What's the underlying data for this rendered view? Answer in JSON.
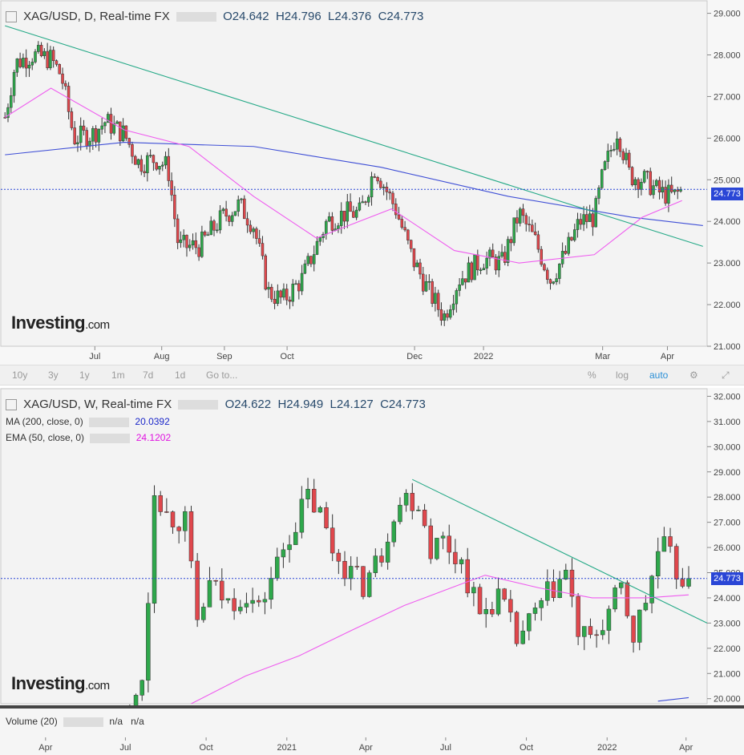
{
  "top_chart": {
    "symbol": "XAG/USD, D, Real-time FX",
    "open": "O24.642",
    "high": "H24.796",
    "low": "L24.376",
    "close": "C24.773",
    "last_price": "24.773",
    "logo": "Investing",
    "logo_suffix": ".com"
  },
  "toolbar": {
    "ranges": [
      "10y",
      "3y",
      "1y",
      "1m",
      "7d",
      "1d",
      "Go to..."
    ],
    "right": [
      "%",
      "log",
      "auto"
    ]
  },
  "bottom_chart": {
    "symbol": "XAG/USD, W, Real-time FX",
    "open": "O24.622",
    "high": "H24.949",
    "low": "L24.127",
    "close": "C24.773",
    "ma_label": "MA (200, close, 0)",
    "ma_value": "20.0392",
    "ema_label": "EMA (50, close, 0)",
    "ema_value": "24.1202",
    "last_price": "24.773",
    "logo": "Investing",
    "logo_suffix": ".com",
    "volume_label": "Volume (20)",
    "volume_values": [
      "n/a",
      "n/a"
    ]
  },
  "colors": {
    "up": "#2ea84b",
    "down": "#e0474c",
    "ma": "#3f4fd6",
    "ema": "#ef5cef",
    "trend": "#25a987",
    "price_line": "#2a46d6"
  },
  "chart_data": [
    {
      "type": "candlestick",
      "title": "XAG/USD, D, Real-time FX",
      "ylim": [
        21,
        29.3
      ],
      "y_ticks": [
        "21.000",
        "22.000",
        "23.000",
        "24.000",
        "25.000",
        "26.000",
        "27.000",
        "28.000",
        "29.000"
      ],
      "x_ticks": [
        "Jul",
        "Aug",
        "Sep",
        "Oct",
        "Dec",
        "2022",
        "Mar",
        "Apr"
      ],
      "close_path": [
        [
          "2021-05-19",
          26.5
        ],
        [
          "2021-05-24",
          27.8
        ],
        [
          "2021-06-01",
          28.0
        ],
        [
          "2021-06-10",
          27.9
        ],
        [
          "2021-06-15",
          27.5
        ],
        [
          "2021-06-21",
          26.0
        ],
        [
          "2021-06-30",
          26.1
        ],
        [
          "2021-07-06",
          26.4
        ],
        [
          "2021-07-15",
          26.1
        ],
        [
          "2021-07-22",
          25.4
        ],
        [
          "2021-07-30",
          25.5
        ],
        [
          "2021-08-05",
          25.3
        ],
        [
          "2021-08-10",
          23.4
        ],
        [
          "2021-08-20",
          23.4
        ],
        [
          "2021-08-31",
          24.1
        ],
        [
          "2021-09-08",
          24.4
        ],
        [
          "2021-09-15",
          23.9
        ],
        [
          "2021-09-22",
          22.3
        ],
        [
          "2021-09-29",
          22.1
        ],
        [
          "2021-10-08",
          22.6
        ],
        [
          "2021-10-20",
          24.0
        ],
        [
          "2021-10-29",
          24.2
        ],
        [
          "2021-11-05",
          24.2
        ],
        [
          "2021-11-12",
          25.3
        ],
        [
          "2021-11-22",
          24.3
        ],
        [
          "2021-11-30",
          23.1
        ],
        [
          "2021-12-08",
          22.3
        ],
        [
          "2021-12-15",
          21.7
        ],
        [
          "2021-12-22",
          22.6
        ],
        [
          "2022-01-03",
          23.1
        ],
        [
          "2022-01-12",
          23.0
        ],
        [
          "2022-01-20",
          24.2
        ],
        [
          "2022-01-28",
          23.5
        ],
        [
          "2022-02-04",
          22.6
        ],
        [
          "2022-02-11",
          23.2
        ],
        [
          "2022-02-18",
          24.0
        ],
        [
          "2022-02-25",
          24.1
        ],
        [
          "2022-03-01",
          25.1
        ],
        [
          "2022-03-08",
          26.2
        ],
        [
          "2022-03-14",
          25.1
        ],
        [
          "2022-03-21",
          25.0
        ],
        [
          "2022-03-28",
          24.7
        ],
        [
          "2022-04-04",
          24.6
        ],
        [
          "2022-04-08",
          24.77
        ]
      ],
      "trendline": [
        [
          "2021-05-19",
          28.7
        ],
        [
          "2022-04-18",
          23.4
        ]
      ],
      "ma_200_path": [
        [
          "2021-05-19",
          25.6
        ],
        [
          "2021-07-15",
          25.9
        ],
        [
          "2021-09-15",
          25.8
        ],
        [
          "2021-11-15",
          25.3
        ],
        [
          "2022-01-15",
          24.6
        ],
        [
          "2022-03-15",
          24.1
        ],
        [
          "2022-04-18",
          23.9
        ]
      ],
      "ema_50_path": [
        [
          "2021-05-19",
          26.5
        ],
        [
          "2021-06-10",
          27.2
        ],
        [
          "2021-07-15",
          26.2
        ],
        [
          "2021-08-15",
          25.8
        ],
        [
          "2021-09-15",
          24.6
        ],
        [
          "2021-10-15",
          23.6
        ],
        [
          "2021-11-20",
          24.3
        ],
        [
          "2021-12-20",
          23.3
        ],
        [
          "2022-01-20",
          23.0
        ],
        [
          "2022-02-25",
          23.2
        ],
        [
          "2022-03-20",
          24.1
        ],
        [
          "2022-04-08",
          24.5
        ]
      ]
    },
    {
      "type": "candlestick",
      "title": "XAG/USD, W, Real-time FX",
      "ylim": [
        19.8,
        32.3
      ],
      "y_ticks": [
        "20.000",
        "21.000",
        "22.000",
        "23.000",
        "24.000",
        "25.000",
        "26.000",
        "27.000",
        "28.000",
        "29.000",
        "30.000",
        "31.000",
        "32.000"
      ],
      "x_ticks": [
        "Apr",
        "Jul",
        "Oct",
        "2021",
        "Apr",
        "Jul",
        "Oct",
        "2022",
        "Apr"
      ],
      "close_path": [
        [
          "2020-07-06",
          19.2
        ],
        [
          "2020-07-20",
          21.0
        ],
        [
          "2020-07-27",
          24.0
        ],
        [
          "2020-08-03",
          28.5
        ],
        [
          "2020-08-17",
          27.3
        ],
        [
          "2020-09-07",
          27.0
        ],
        [
          "2020-09-21",
          23.0
        ],
        [
          "2020-10-05",
          24.5
        ],
        [
          "2020-10-26",
          23.8
        ],
        [
          "2020-11-16",
          24.2
        ],
        [
          "2020-11-30",
          23.5
        ],
        [
          "2020-12-14",
          24.8
        ],
        [
          "2021-01-04",
          26.5
        ],
        [
          "2021-01-25",
          28.0
        ],
        [
          "2021-02-08",
          27.3
        ],
        [
          "2021-02-22",
          25.9
        ],
        [
          "2021-03-15",
          25.0
        ],
        [
          "2021-03-29",
          24.5
        ],
        [
          "2021-04-19",
          25.8
        ],
        [
          "2021-05-03",
          27.5
        ],
        [
          "2021-05-17",
          28.0
        ],
        [
          "2021-06-01",
          27.8
        ],
        [
          "2021-06-14",
          26.0
        ],
        [
          "2021-06-28",
          26.3
        ],
        [
          "2021-07-19",
          25.4
        ],
        [
          "2021-08-09",
          23.3
        ],
        [
          "2021-08-30",
          24.1
        ],
        [
          "2021-09-20",
          22.3
        ],
        [
          "2021-10-11",
          23.3
        ],
        [
          "2021-10-25",
          24.1
        ],
        [
          "2021-11-15",
          25.0
        ],
        [
          "2021-11-29",
          22.6
        ],
        [
          "2021-12-13",
          22.2
        ],
        [
          "2021-12-27",
          23.0
        ],
        [
          "2022-01-17",
          24.3
        ],
        [
          "2022-01-31",
          22.5
        ],
        [
          "2022-02-14",
          23.9
        ],
        [
          "2022-02-28",
          25.8
        ],
        [
          "2022-03-07",
          26.0
        ],
        [
          "2022-03-21",
          25.0
        ],
        [
          "2022-04-04",
          24.77
        ]
      ],
      "trendline": [
        [
          "2021-05-24",
          28.7
        ],
        [
          "2022-04-25",
          23.0
        ]
      ],
      "ma_200_path": [
        [
          "2022-02-28",
          19.9
        ],
        [
          "2022-04-04",
          20.04
        ]
      ],
      "ema_50_path": [
        [
          "2020-09-14",
          19.8
        ],
        [
          "2020-11-15",
          20.9
        ],
        [
          "2021-01-15",
          21.7
        ],
        [
          "2021-03-15",
          22.7
        ],
        [
          "2021-05-15",
          23.7
        ],
        [
          "2021-07-15",
          24.5
        ],
        [
          "2021-08-15",
          24.9
        ],
        [
          "2021-10-15",
          24.4
        ],
        [
          "2021-12-15",
          24.0
        ],
        [
          "2022-02-15",
          24.0
        ],
        [
          "2022-04-04",
          24.12
        ]
      ]
    }
  ]
}
